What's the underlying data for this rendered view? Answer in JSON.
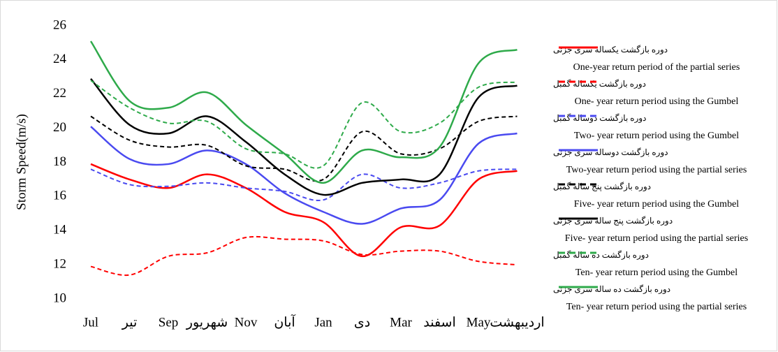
{
  "chart_data": {
    "type": "line",
    "y_label": "Storm Speed(m/s)",
    "categories": [
      "Jul",
      "تیر",
      "Sep",
      "شهریور",
      "Nov",
      "آبان",
      "Jan",
      "دی",
      "Mar",
      "اسفند",
      "May",
      "اردیبهشت"
    ],
    "ylim": [
      10,
      26
    ],
    "yticks": [
      10,
      12,
      14,
      16,
      18,
      20,
      22,
      24,
      26
    ],
    "series": [
      {
        "name": "دوره بازگشت یکساله سری جزئی",
        "description": "One-year return period of the partial series",
        "color": "#ff0000",
        "style": "solid",
        "values": [
          17.9,
          17.0,
          16.5,
          17.3,
          16.5,
          15.1,
          14.5,
          12.5,
          14.2,
          14.3,
          17.0,
          17.5
        ]
      },
      {
        "name": "دوره بازگشت یکساله گمبل",
        "description": "One- year return period using the Gumbel",
        "color": "#ff0000",
        "style": "dashed",
        "values": [
          11.9,
          11.4,
          12.5,
          12.7,
          13.6,
          13.5,
          13.4,
          12.6,
          12.8,
          12.8,
          12.2,
          12.0
        ]
      },
      {
        "name": "دوره بازگشت دوساله گمبل",
        "description": "Two- year return period using the Gumbel",
        "color": "#4a4af0",
        "style": "dashed",
        "values": [
          17.6,
          16.7,
          16.6,
          16.8,
          16.5,
          16.3,
          15.8,
          17.3,
          16.5,
          16.8,
          17.5,
          17.6
        ]
      },
      {
        "name": "دوره بازگشت دوساله سری جزئی",
        "description": "Two-year return period using the partial series",
        "color": "#4a4af0",
        "style": "solid",
        "values": [
          20.1,
          18.2,
          17.9,
          18.7,
          17.9,
          16.2,
          15.1,
          14.4,
          15.3,
          15.8,
          19.1,
          19.7
        ]
      },
      {
        "name": "دوره بازگشت پنج ساله گمبل",
        "description": "Five- year return period using the Gumbel",
        "color": "#000000",
        "style": "dashed",
        "values": [
          20.7,
          19.3,
          18.9,
          19.0,
          17.8,
          17.6,
          17.0,
          19.8,
          18.5,
          18.8,
          20.4,
          20.7
        ]
      },
      {
        "name": "دوره بازگشت پنج ساله سری جزئی",
        "description": "Five- year return period using the partial series",
        "color": "#000000",
        "style": "solid",
        "values": [
          22.9,
          20.2,
          19.7,
          20.7,
          19.2,
          17.3,
          16.1,
          16.8,
          17.0,
          17.3,
          21.8,
          22.5
        ]
      },
      {
        "name": "دوره بازگشت ده ساله گمبل",
        "description": "Ten- year return period using the Gumbel",
        "color": "#2eaa4a",
        "style": "dashed",
        "values": [
          22.8,
          21.2,
          20.3,
          20.4,
          18.8,
          18.5,
          17.8,
          21.5,
          19.8,
          20.3,
          22.4,
          22.7
        ]
      },
      {
        "name": "دوره بازگشت ده ساله سری جزئی",
        "description": "Ten- year return period using the partial series",
        "color": "#2eaa4a",
        "style": "solid",
        "values": [
          25.1,
          21.6,
          21.2,
          22.1,
          20.2,
          18.5,
          16.8,
          18.7,
          18.3,
          18.9,
          23.8,
          24.6
        ]
      }
    ]
  }
}
